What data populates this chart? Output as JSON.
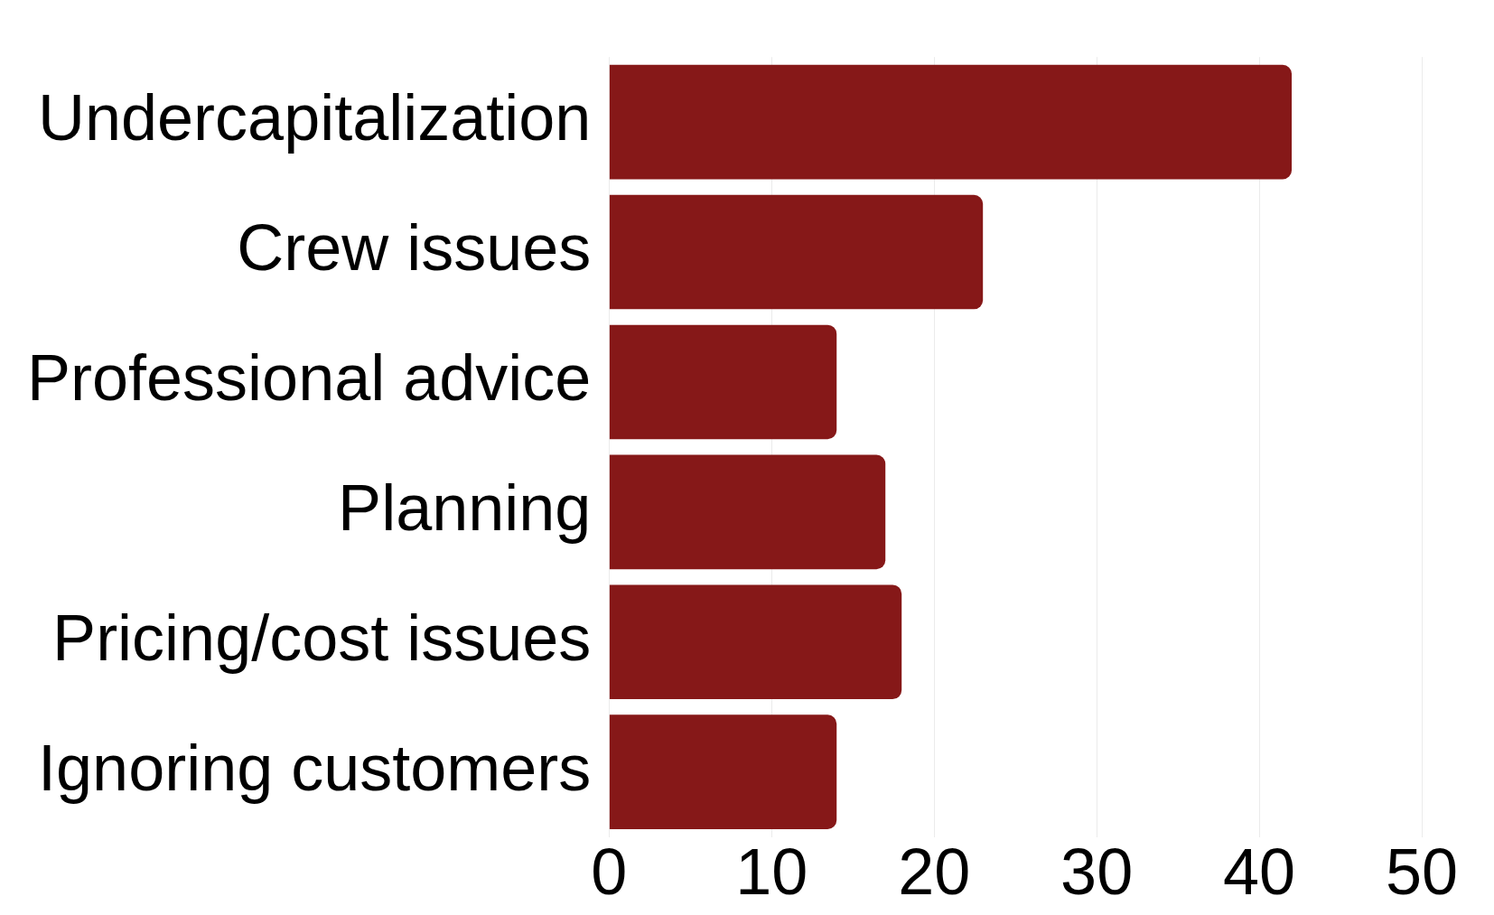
{
  "chart_data": {
    "type": "bar",
    "orientation": "horizontal",
    "categories": [
      "Undercapitalization",
      "Crew issues",
      "Professional advice",
      "Planning",
      "Pricing/cost issues",
      "Ignoring customers"
    ],
    "values": [
      42,
      23,
      14,
      17,
      18,
      14
    ],
    "color": "#861818",
    "xlim": [
      0,
      50
    ],
    "xticks": [
      0,
      10,
      20,
      30,
      40,
      50
    ],
    "grid": "x",
    "legend": false
  }
}
